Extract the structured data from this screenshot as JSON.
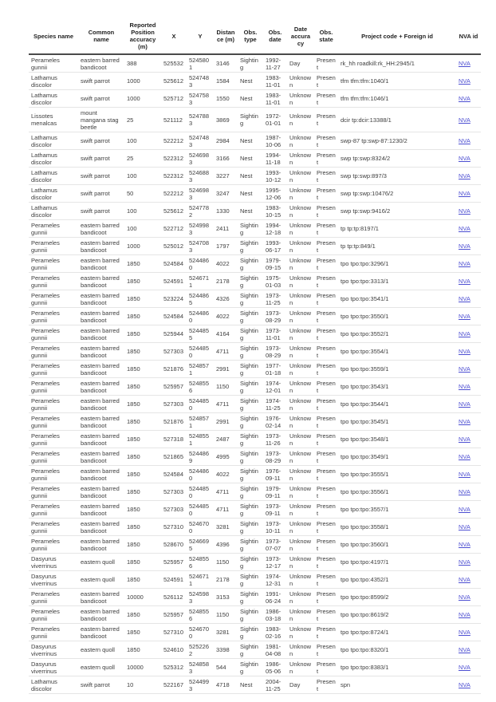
{
  "table": {
    "link_color": "#4d4fd2",
    "columns": [
      {
        "name": "species-name",
        "label": "Species name"
      },
      {
        "name": "common-name",
        "label": "Common name"
      },
      {
        "name": "reported-position-accuracy",
        "label": "Reported Position accuracy (m)"
      },
      {
        "name": "x",
        "label": "X"
      },
      {
        "name": "y",
        "label": "Y"
      },
      {
        "name": "distance",
        "label": "Distance (m)"
      },
      {
        "name": "obs-type",
        "label": "Obs. type"
      },
      {
        "name": "obs-date",
        "label": "Obs. date"
      },
      {
        "name": "date-accuracy",
        "label": "Date accuracy"
      },
      {
        "name": "obs-state",
        "label": "Obs. state"
      },
      {
        "name": "project-code",
        "label": "Project code + Foreign id"
      },
      {
        "name": "nva-id",
        "label": "NVA id"
      }
    ],
    "rows": [
      [
        "Perameles gunnii",
        "eastern barred bandicoot",
        "388",
        "525532",
        "5245801",
        "3146",
        "Sighting",
        "1992-11-27",
        "Day",
        "Present",
        "rk_hh roadkill:rk_HH:2945/1",
        "NVA"
      ],
      [
        "Lathamus discolor",
        "swift parrot",
        "1000",
        "525612",
        "5247483",
        "1584",
        "Nest",
        "1983-11-01",
        "Unknown",
        "Present",
        "tfm tfm:tfm:1040/1",
        "NVA"
      ],
      [
        "Lathamus discolor",
        "swift parrot",
        "1000",
        "525712",
        "5247583",
        "1550",
        "Nest",
        "1983-11-01",
        "Unknown",
        "Present",
        "tfm tfm:tfm:1046/1",
        "NVA"
      ],
      [
        "Lissotes menalcas",
        "mount mangana stag beetle",
        "25",
        "521112",
        "5247883",
        "3869",
        "Sighting",
        "1972-01-01",
        "Unknown",
        "Present",
        "dcir tp:dcir:13388/1",
        "NVA"
      ],
      [
        "Lathamus discolor",
        "swift parrot",
        "100",
        "522212",
        "5247483",
        "2984",
        "Nest",
        "1987-10-06",
        "Unknown",
        "Present",
        "swp-87 tp:swp-87:1230/2",
        "NVA"
      ],
      [
        "Lathamus discolor",
        "swift parrot",
        "25",
        "522312",
        "5246983",
        "3166",
        "Nest",
        "1994-11-18",
        "Unknown",
        "Present",
        "swp tp:swp:8324/2",
        "NVA"
      ],
      [
        "Lathamus discolor",
        "swift parrot",
        "100",
        "522312",
        "5246883",
        "3227",
        "Nest",
        "1993-10-12",
        "Unknown",
        "Present",
        "swp tp:swp:897/3",
        "NVA"
      ],
      [
        "Lathamus discolor",
        "swift parrot",
        "50",
        "522212",
        "5246983",
        "3247",
        "Nest",
        "1995-12-06",
        "Unknown",
        "Present",
        "swp tp:swp:10476/2",
        "NVA"
      ],
      [
        "Lathamus discolor",
        "swift parrot",
        "100",
        "525612",
        "5247782",
        "1330",
        "Nest",
        "1983-10-15",
        "Unknown",
        "Present",
        "swp tp:swp:9416/2",
        "NVA"
      ],
      [
        "Perameles gunnii",
        "eastern barred bandicoot",
        "100",
        "522712",
        "5249983",
        "2411",
        "Sighting",
        "1994-12-18",
        "Unknown",
        "Present",
        "tp tp:tp:8197/1",
        "NVA"
      ],
      [
        "Perameles gunnii",
        "eastern barred bandicoot",
        "1000",
        "525012",
        "5247083",
        "1797",
        "Sighting",
        "1993-06-17",
        "Unknown",
        "Present",
        "tp tp:tp:849/1",
        "NVA"
      ],
      [
        "Perameles gunnii",
        "eastern barred bandicoot",
        "1850",
        "524584",
        "5244860",
        "4022",
        "Sighting",
        "1979-09-15",
        "Unknown",
        "Present",
        "tpo tpo:tpo:3296/1",
        "NVA"
      ],
      [
        "Perameles gunnii",
        "eastern barred bandicoot",
        "1850",
        "524591",
        "5246711",
        "2178",
        "Sighting",
        "1975-01-03",
        "Unknown",
        "Present",
        "tpo tpo:tpo:3313/1",
        "NVA"
      ],
      [
        "Perameles gunnii",
        "eastern barred bandicoot",
        "1850",
        "523224",
        "5244865",
        "4326",
        "Sighting",
        "1973-11-25",
        "Unknown",
        "Present",
        "tpo tpo:tpo:3541/1",
        "NVA"
      ],
      [
        "Perameles gunnii",
        "eastern barred bandicoot",
        "1850",
        "524584",
        "5244860",
        "4022",
        "Sighting",
        "1973-08-29",
        "Unknown",
        "Present",
        "tpo tpo:tpo:3550/1",
        "NVA"
      ],
      [
        "Perameles gunnii",
        "eastern barred bandicoot",
        "1850",
        "525944",
        "5244855",
        "4164",
        "Sighting",
        "1973-11-01",
        "Unknown",
        "Present",
        "tpo tpo:tpo:3552/1",
        "NVA"
      ],
      [
        "Perameles gunnii",
        "eastern barred bandicoot",
        "1850",
        "527303",
        "5244850",
        "4711",
        "Sighting",
        "1973-08-29",
        "Unknown",
        "Present",
        "tpo tpo:tpo:3554/1",
        "NVA"
      ],
      [
        "Perameles gunnii",
        "eastern barred bandicoot",
        "1850",
        "521876",
        "5248571",
        "2991",
        "Sighting",
        "1977-01-18",
        "Unknown",
        "Present",
        "tpo tpo:tpo:3559/1",
        "NVA"
      ],
      [
        "Perameles gunnii",
        "eastern barred bandicoot",
        "1850",
        "525957",
        "5248556",
        "1150",
        "Sighting",
        "1974-12-01",
        "Unknown",
        "Present",
        "tpo tpo:tpo:3543/1",
        "NVA"
      ],
      [
        "Perameles gunnii",
        "eastern barred bandicoot",
        "1850",
        "527303",
        "5244850",
        "4711",
        "Sighting",
        "1974-11-25",
        "Unknown",
        "Present",
        "tpo tpo:tpo:3544/1",
        "NVA"
      ],
      [
        "Perameles gunnii",
        "eastern barred bandicoot",
        "1850",
        "521876",
        "5248571",
        "2991",
        "Sighting",
        "1976-02-14",
        "Unknown",
        "Present",
        "tpo tpo:tpo:3545/1",
        "NVA"
      ],
      [
        "Perameles gunnii",
        "eastern barred bandicoot",
        "1850",
        "527318",
        "5248551",
        "2487",
        "Sighting",
        "1973-11-26",
        "Unknown",
        "Present",
        "tpo tpo:tpo:3548/1",
        "NVA"
      ],
      [
        "Perameles gunnii",
        "eastern barred bandicoot",
        "1850",
        "521865",
        "5244869",
        "4995",
        "Sighting",
        "1973-08-29",
        "Unknown",
        "Present",
        "tpo tpo:tpo:3549/1",
        "NVA"
      ],
      [
        "Perameles gunnii",
        "eastern barred bandicoot",
        "1850",
        "524584",
        "5244860",
        "4022",
        "Sighting",
        "1976-09-11",
        "Unknown",
        "Present",
        "tpo tpo:tpo:3555/1",
        "NVA"
      ],
      [
        "Perameles gunnii",
        "eastern barred bandicoot",
        "1850",
        "527303",
        "5244850",
        "4711",
        "Sighting",
        "1979-09-11",
        "Unknown",
        "Present",
        "tpo tpo:tpo:3556/1",
        "NVA"
      ],
      [
        "Perameles gunnii",
        "eastern barred bandicoot",
        "1850",
        "527303",
        "5244850",
        "4711",
        "Sighting",
        "1973-09-11",
        "Unknown",
        "Present",
        "tpo tpo:tpo:3557/1",
        "NVA"
      ],
      [
        "Perameles gunnii",
        "eastern barred bandicoot",
        "1850",
        "527310",
        "5246700",
        "3281",
        "Sighting",
        "1973-10-11",
        "Unknown",
        "Present",
        "tpo tpo:tpo:3558/1",
        "NVA"
      ],
      [
        "Perameles gunnii",
        "eastern barred bandicoot",
        "1850",
        "528670",
        "5246695",
        "4396",
        "Sighting",
        "1973-07-07",
        "Unknown",
        "Present",
        "tpo tpo:tpo:3560/1",
        "NVA"
      ],
      [
        "Dasyurus viverrinus",
        "eastern quoll",
        "1850",
        "525957",
        "5248556",
        "1150",
        "Sighting",
        "1973-12-17",
        "Unknown",
        "Present",
        "tpo tpo:tpo:4197/1",
        "NVA"
      ],
      [
        "Dasyurus viverrinus",
        "eastern quoll",
        "1850",
        "524591",
        "5246711",
        "2178",
        "Sighting",
        "1974-12-31",
        "Unknown",
        "Present",
        "tpo tpo:tpo:4352/1",
        "NVA"
      ],
      [
        "Perameles gunnii",
        "eastern barred bandicoot",
        "10000",
        "526112",
        "5245983",
        "3153",
        "Sighting",
        "1991-06-24",
        "Unknown",
        "Present",
        "tpo tpo:tpo:8599/2",
        "NVA"
      ],
      [
        "Perameles gunnii",
        "eastern barred bandicoot",
        "1850",
        "525957",
        "5248556",
        "1150",
        "Sighting",
        "1986-03-18",
        "Unknown",
        "Present",
        "tpo tpo:tpo:8619/2",
        "NVA"
      ],
      [
        "Perameles gunnii",
        "eastern barred bandicoot",
        "1850",
        "527310",
        "5246700",
        "3281",
        "Sighting",
        "1983-02-16",
        "Unknown",
        "Present",
        "tpo tpo:tpo:8724/1",
        "NVA"
      ],
      [
        "Dasyurus viverrinus",
        "eastern quoll",
        "1850",
        "524610",
        "5252262",
        "3398",
        "Sighting",
        "1981-04-08",
        "Unknown",
        "Present",
        "tpo tpo:tpo:8320/1",
        "NVA"
      ],
      [
        "Dasyurus viverrinus",
        "eastern quoll",
        "10000",
        "525312",
        "5248583",
        "544",
        "Sighting",
        "1986-05-06",
        "Unknown",
        "Present",
        "tpo tpo:tpo:8383/1",
        "NVA"
      ],
      [
        "Lathamus discolor",
        "swift parrot",
        "10",
        "522167",
        "5244993",
        "4718",
        "Nest",
        "2004-11-25",
        "Day",
        "Present",
        "spn",
        "NVA"
      ]
    ]
  }
}
